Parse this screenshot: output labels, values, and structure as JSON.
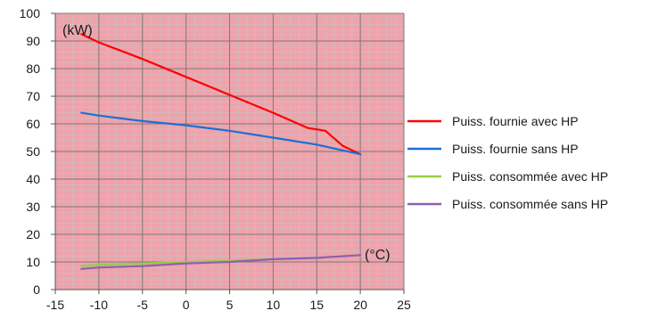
{
  "chart_data": {
    "type": "line",
    "title": "",
    "xlabel": "(°C)",
    "ylabel": "(kW)",
    "xlim": [
      -15,
      25
    ],
    "ylim": [
      0,
      100
    ],
    "x_ticks": [
      -15,
      -10,
      -5,
      0,
      5,
      10,
      15,
      20,
      25
    ],
    "y_ticks": [
      0,
      10,
      20,
      30,
      40,
      50,
      60,
      70,
      80,
      90,
      100
    ],
    "x_tick_labels": [
      "-15",
      "-10",
      "-5",
      "0",
      "5",
      "10",
      "15",
      "20",
      "25"
    ],
    "y_tick_labels": [
      "0",
      "10",
      "20",
      "30",
      "40",
      "50",
      "60",
      "70",
      "80",
      "90",
      "100"
    ],
    "grid": true,
    "plot_background": "#f0a2ab",
    "legend_position": "right",
    "series": [
      {
        "name": "Puiss. fournie avec HP",
        "color": "#ff0000",
        "x": [
          -12,
          -10,
          -5,
          0,
          5,
          10,
          14,
          15,
          16,
          18,
          20
        ],
        "y": [
          92.5,
          89.5,
          83.5,
          77,
          70.5,
          64,
          58.5,
          58,
          57.5,
          52,
          49
        ]
      },
      {
        "name": "Puiss. fournie sans HP",
        "color": "#1f6fd1",
        "x": [
          -12,
          -10,
          -5,
          0,
          5,
          10,
          15,
          20
        ],
        "y": [
          64,
          63,
          61,
          59.5,
          57.5,
          55,
          52.5,
          49
        ]
      },
      {
        "name": "Puiss. consommée avec HP",
        "color": "#99cc44",
        "x": [
          -12,
          -10,
          -5,
          0,
          5,
          10,
          15,
          20
        ],
        "y": [
          8.5,
          9,
          9.5,
          10,
          10.5,
          11,
          11.5,
          12.5
        ]
      },
      {
        "name": "Puiss. consommée sans HP",
        "color": "#8e5fb5",
        "x": [
          -12,
          -10,
          -5,
          0,
          5,
          10,
          15,
          20
        ],
        "y": [
          7.5,
          8,
          8.5,
          9.5,
          10,
          11,
          11.5,
          12.5
        ]
      }
    ]
  }
}
